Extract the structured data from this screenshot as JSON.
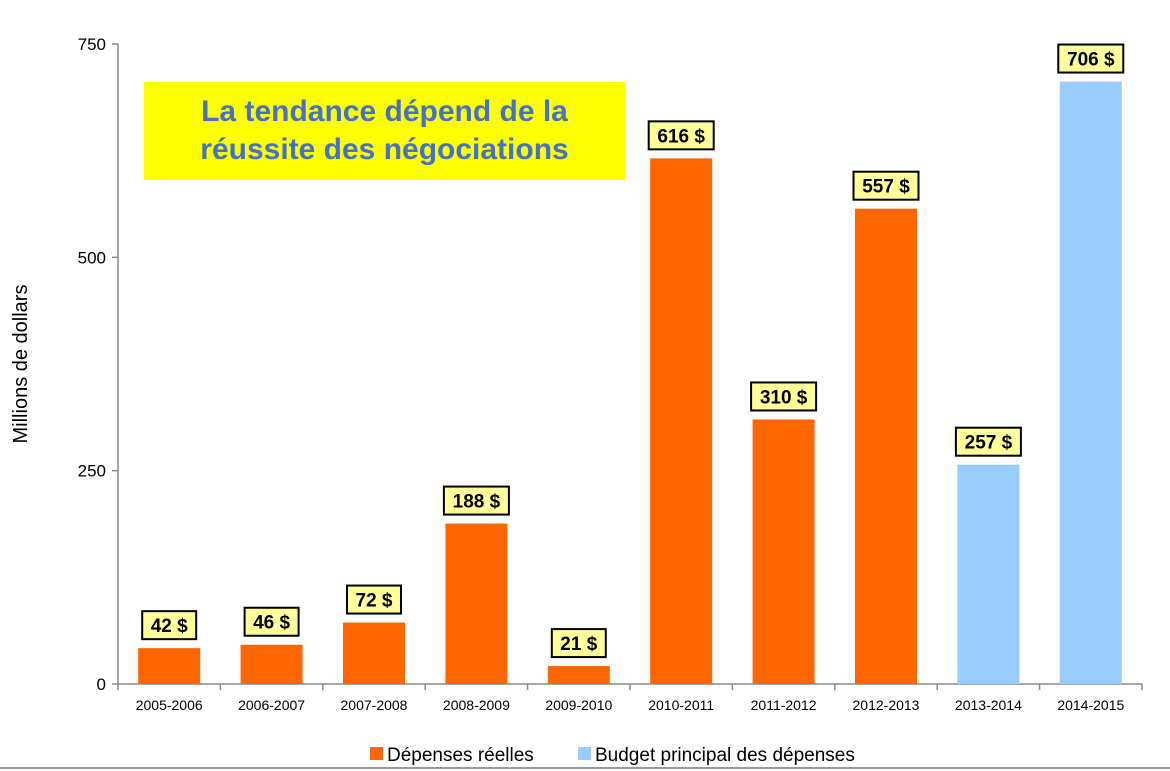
{
  "chart_data": {
    "type": "bar",
    "title": "",
    "annotation": "La tendance dépend de la réussite des négociations",
    "xlabel": "",
    "ylabel": "Millions de dollars",
    "ylim": [
      0,
      750
    ],
    "yticks": [
      "0",
      "250",
      "500",
      "750"
    ],
    "grid": false,
    "legend_position": "bottom",
    "categories": [
      "2005-2006",
      "2006-2007",
      "2007-2008",
      "2008-2009",
      "2009-2010",
      "2010-2011",
      "2011-2012",
      "2012-2013",
      "2013-2014",
      "2014-2015"
    ],
    "values": [
      42,
      46,
      72,
      188,
      21,
      616,
      310,
      557,
      257,
      706
    ],
    "data_labels": [
      "42 $",
      "46 $",
      "72 $",
      "188 $",
      "21 $",
      "616 $",
      "310 $",
      "557 $",
      "257 $",
      "706 $"
    ],
    "series_index": [
      0,
      0,
      0,
      0,
      0,
      0,
      0,
      0,
      1,
      1
    ],
    "series": [
      {
        "name": "Dépenses réelles",
        "color": "#ff6600"
      },
      {
        "name": "Budget principal des dépenses",
        "color": "#99ccff"
      }
    ],
    "label_box_color": "#ffff99",
    "annotation_colors": {
      "background": "#ffff00",
      "text": "#4472c4"
    }
  }
}
